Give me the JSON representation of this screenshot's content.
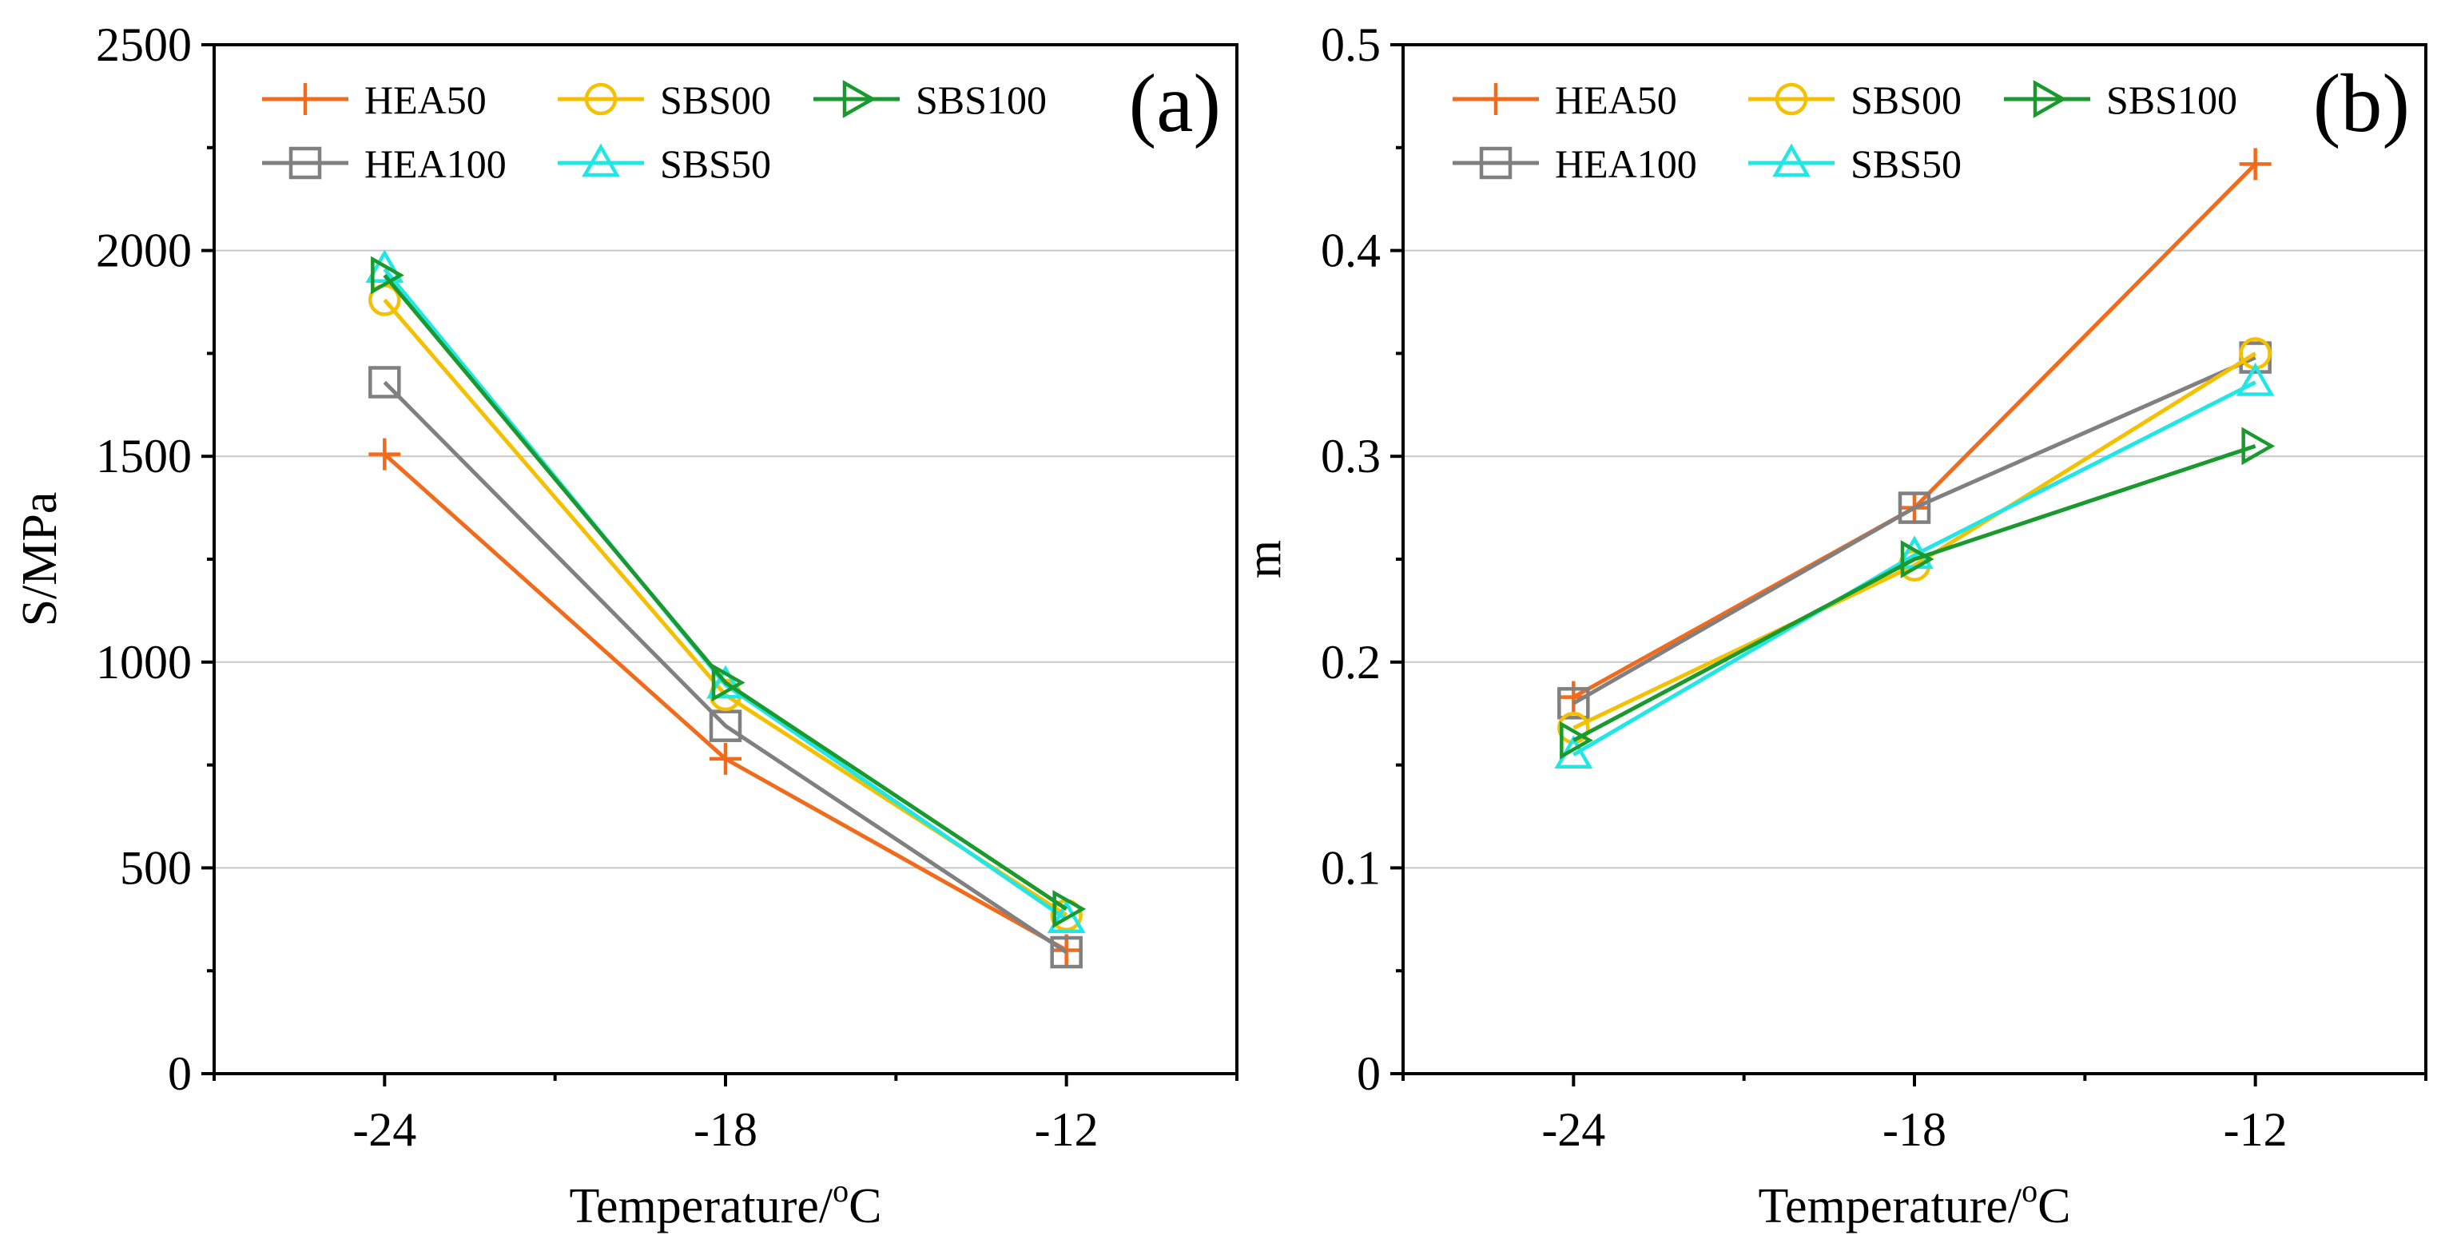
{
  "chart_data": [
    {
      "type": "line",
      "panel_label": "(a)",
      "title": "",
      "xlabel_prefix": "Temperature/",
      "xlabel_sup": "o",
      "xlabel_suffix": "C",
      "ylabel": "S/MPa",
      "categories": [
        "-24",
        "-18",
        "-12"
      ],
      "x": [
        -24,
        -18,
        -12
      ],
      "xlim": [
        -27,
        -9
      ],
      "ylim": [
        0,
        2500
      ],
      "yticks": [
        "0",
        "500",
        "1000",
        "1500",
        "2000",
        "2500"
      ],
      "ytick_values": [
        0,
        500,
        1000,
        1500,
        2000,
        2500
      ],
      "grid": true,
      "legend_position": "top-left",
      "series": [
        {
          "name": "HEA50",
          "color": "#F26A1B",
          "marker": "plus",
          "values": [
            1505,
            765,
            300
          ]
        },
        {
          "name": "HEA100",
          "color": "#808080",
          "marker": "square",
          "values": [
            1680,
            845,
            295
          ]
        },
        {
          "name": "SBS00",
          "color": "#F5C000",
          "marker": "circle",
          "values": [
            1880,
            920,
            385
          ]
        },
        {
          "name": "SBS50",
          "color": "#22E6E6",
          "marker": "triangle-up",
          "values": [
            1955,
            945,
            375
          ]
        },
        {
          "name": "SBS100",
          "color": "#1A9A2E",
          "marker": "triangle-right",
          "values": [
            1940,
            950,
            400
          ]
        }
      ]
    },
    {
      "type": "line",
      "panel_label": "(b)",
      "title": "",
      "xlabel_prefix": "Temperature/",
      "xlabel_sup": "o",
      "xlabel_suffix": "C",
      "ylabel": "m",
      "categories": [
        "-24",
        "-18",
        "-12"
      ],
      "x": [
        -24,
        -18,
        -12
      ],
      "xlim": [
        -27,
        -9
      ],
      "ylim": [
        0,
        0.5
      ],
      "yticks": [
        "0",
        "0.1",
        "0.2",
        "0.3",
        "0.4",
        "0.5"
      ],
      "ytick_values": [
        0,
        0.1,
        0.2,
        0.3,
        0.4,
        0.5
      ],
      "grid": true,
      "legend_position": "top-left",
      "series": [
        {
          "name": "HEA50",
          "color": "#F26A1B",
          "marker": "plus",
          "values": [
            0.183,
            0.275,
            0.442
          ]
        },
        {
          "name": "HEA100",
          "color": "#808080",
          "marker": "square",
          "values": [
            0.18,
            0.275,
            0.348
          ]
        },
        {
          "name": "SBS00",
          "color": "#F5C000",
          "marker": "circle",
          "values": [
            0.168,
            0.247,
            0.35
          ]
        },
        {
          "name": "SBS50",
          "color": "#22E6E6",
          "marker": "triangle-up",
          "values": [
            0.155,
            0.252,
            0.336
          ]
        },
        {
          "name": "SBS100",
          "color": "#1A9A2E",
          "marker": "triangle-right",
          "values": [
            0.162,
            0.25,
            0.305
          ]
        }
      ]
    }
  ]
}
